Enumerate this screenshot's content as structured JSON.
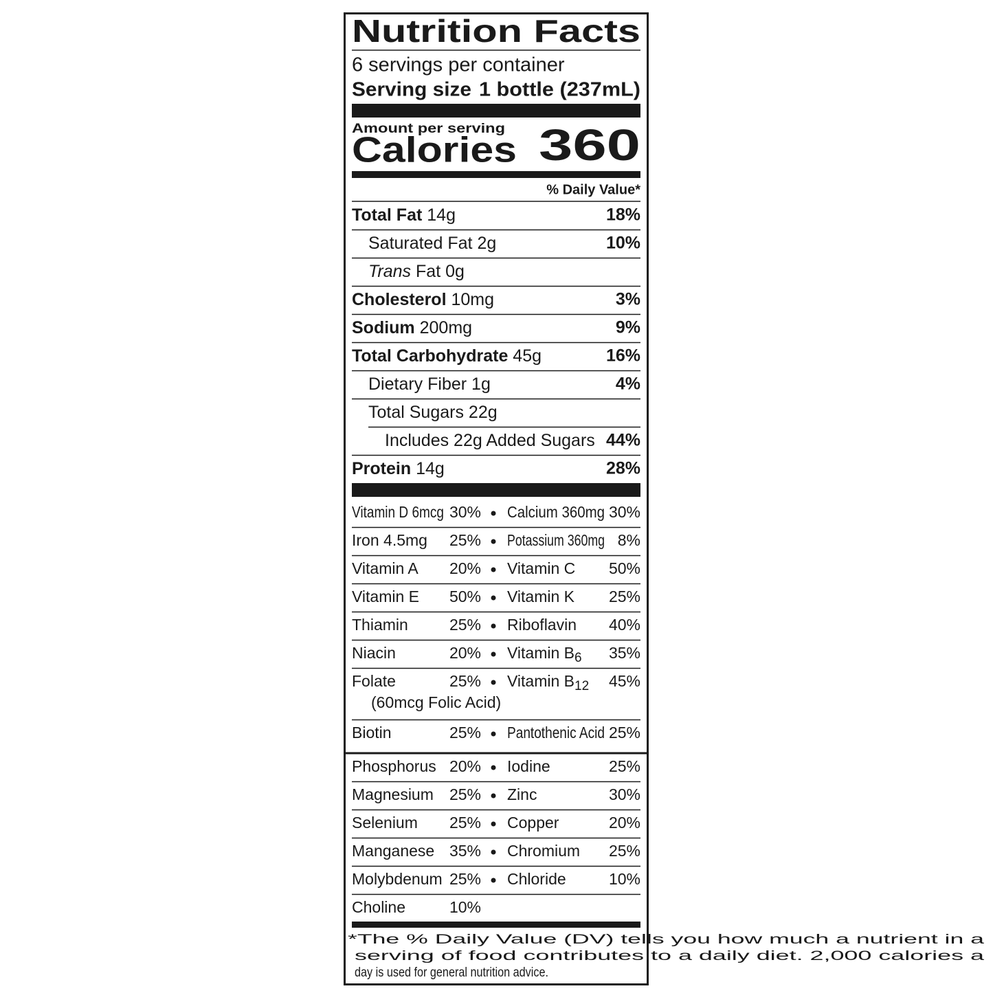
{
  "title": "Nutrition Facts",
  "servings": "6 servings per container",
  "serving_size": {
    "label": "Serving size",
    "value": "1 bottle (237mL)"
  },
  "amount_per_serving": "Amount per serving",
  "calories": {
    "label": "Calories",
    "value": 360
  },
  "dv_header": "% Daily Value*",
  "nutrients": [
    {
      "name": "Total Fat",
      "amount": "14g",
      "dv": "18%"
    },
    {
      "name": "Saturated Fat",
      "amount": "2g",
      "dv": "10%"
    },
    {
      "prefix": "Trans",
      "name": "Fat",
      "amount": "0g"
    },
    {
      "name": "Cholesterol",
      "amount": "10mg",
      "dv": "3%"
    },
    {
      "name": "Sodium",
      "amount": "200mg",
      "dv": "9%"
    },
    {
      "name": "Total Carbohydrate",
      "amount": "45g",
      "dv": "16%"
    },
    {
      "name": "Dietary Fiber",
      "amount": "1g",
      "dv": "4%"
    },
    {
      "name": "Total Sugars",
      "amount": "22g"
    },
    {
      "name": "Includes 22g Added Sugars",
      "dv": "44%"
    },
    {
      "name": "Protein",
      "amount": "14g",
      "dv": "28%"
    }
  ],
  "vitamins": [
    [
      {
        "name": "Vitamin D 6mcg",
        "dv": "30%"
      },
      {
        "name": "Calcium 360mg",
        "dv": "30%"
      }
    ],
    [
      {
        "name": "Iron 4.5mg",
        "dv": "25%"
      },
      {
        "name": "Potassium 360mg",
        "dv": "8%"
      }
    ],
    [
      {
        "name": "Vitamin A",
        "dv": "20%"
      },
      {
        "name": "Vitamin C",
        "dv": "50%"
      }
    ],
    [
      {
        "name": "Vitamin E",
        "dv": "50%"
      },
      {
        "name": "Vitamin K",
        "dv": "25%"
      }
    ],
    [
      {
        "name": "Thiamin",
        "dv": "25%"
      },
      {
        "name": "Riboflavin",
        "dv": "40%"
      }
    ],
    [
      {
        "name": "Niacin",
        "dv": "20%"
      },
      {
        "name": "Vitamin B",
        "sub": "6",
        "dv": "35%"
      }
    ],
    [
      {
        "name": "Folate",
        "dv": "25%",
        "note": "(60mcg Folic Acid)"
      },
      {
        "name": "Vitamin B",
        "sub": "12",
        "dv": "45%"
      }
    ],
    [
      {
        "name": "Biotin",
        "dv": "25%"
      },
      {
        "name": "Pantothenic Acid",
        "dv": "25%"
      }
    ]
  ],
  "minerals": [
    [
      {
        "name": "Phosphorus",
        "dv": "20%"
      },
      {
        "name": "Iodine",
        "dv": "25%"
      }
    ],
    [
      {
        "name": "Magnesium",
        "dv": "25%"
      },
      {
        "name": "Zinc",
        "dv": "30%"
      }
    ],
    [
      {
        "name": "Selenium",
        "dv": "25%"
      },
      {
        "name": "Copper",
        "dv": "20%"
      }
    ],
    [
      {
        "name": "Manganese",
        "dv": "35%"
      },
      {
        "name": "Chromium",
        "dv": "25%"
      }
    ],
    [
      {
        "name": "Molybdenum",
        "dv": "25%"
      },
      {
        "name": "Chloride",
        "dv": "10%"
      }
    ],
    [
      {
        "name": "Choline",
        "dv": "10%"
      }
    ]
  ],
  "footnote": [
    "*The % Daily Value (DV) tells you how much a nutrient in a",
    "serving of food contributes to a daily diet. 2,000 calories a",
    "day is used for general nutrition advice."
  ]
}
